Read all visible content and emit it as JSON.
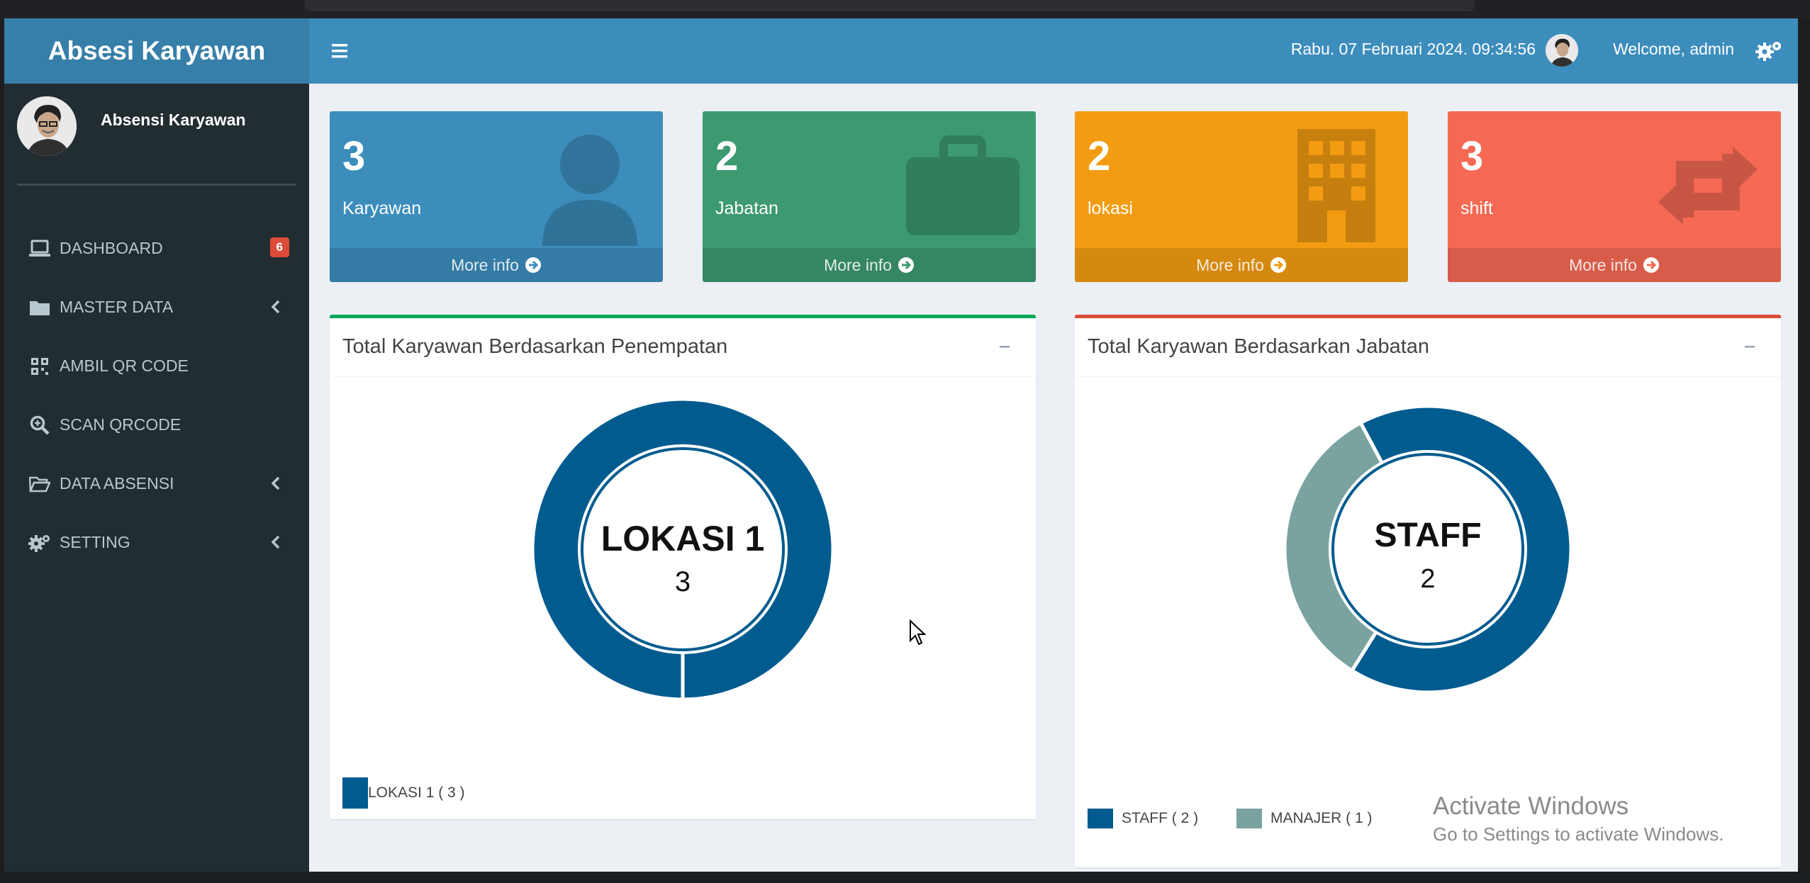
{
  "sidebar": {
    "logo": "Absesi Karyawan",
    "user_name": "Absensi Karyawan",
    "items": [
      {
        "label": "DASHBOARD",
        "icon": "laptop-icon",
        "badge": "6"
      },
      {
        "label": "MASTER DATA",
        "icon": "folder-icon"
      },
      {
        "label": "AMBIL QR CODE",
        "icon": "qrcode-icon"
      },
      {
        "label": "SCAN QRCODE",
        "icon": "search-plus-icon"
      },
      {
        "label": "DATA ABSENSI",
        "icon": "folder-open-icon"
      },
      {
        "label": "SETTING",
        "icon": "gears-icon"
      }
    ]
  },
  "header": {
    "datetime": "Rabu. 07 Februari 2024. 09:34:56",
    "welcome": "Welcome, admin"
  },
  "stats": [
    {
      "value": "3",
      "label": "Karyawan",
      "more": "More info",
      "color": "#3c8dbc",
      "icon": "user-icon"
    },
    {
      "value": "2",
      "label": "Jabatan",
      "more": "More info",
      "color": "#3d9970",
      "icon": "briefcase-icon"
    },
    {
      "value": "2",
      "label": "lokasi",
      "more": "More info",
      "color": "#f39c12",
      "icon": "building-icon"
    },
    {
      "value": "3",
      "label": "shift",
      "more": "More info",
      "color": "#f56954",
      "icon": "retweet-icon"
    }
  ],
  "panels": {
    "penempatan": {
      "title": "Total Karyawan Berdasarkan Penempatan",
      "center_label": "LOKASI 1",
      "center_value": "3",
      "legend": [
        {
          "label": "LOKASI 1 ( 3 )",
          "color": "#005b8f"
        }
      ]
    },
    "jabatan": {
      "title": "Total Karyawan Berdasarkan Jabatan",
      "center_label": "STAFF",
      "center_value": "2",
      "legend": [
        {
          "label": "STAFF ( 2 )",
          "color": "#005b8f"
        },
        {
          "label": "MANAJER ( 1 )",
          "color": "#7aa3a0"
        }
      ]
    }
  },
  "chart_data": [
    {
      "type": "pie",
      "title": "Total Karyawan Berdasarkan Penempatan",
      "categories": [
        "LOKASI 1"
      ],
      "values": [
        3
      ],
      "colors": [
        "#005b8f"
      ]
    },
    {
      "type": "pie",
      "title": "Total Karyawan Berdasarkan Jabatan",
      "categories": [
        "STAFF",
        "MANAJER"
      ],
      "values": [
        2,
        1
      ],
      "colors": [
        "#005b8f",
        "#7aa3a0"
      ]
    }
  ],
  "watermark": {
    "line1": "Activate Windows",
    "line2": "Go to Settings to activate Windows."
  }
}
